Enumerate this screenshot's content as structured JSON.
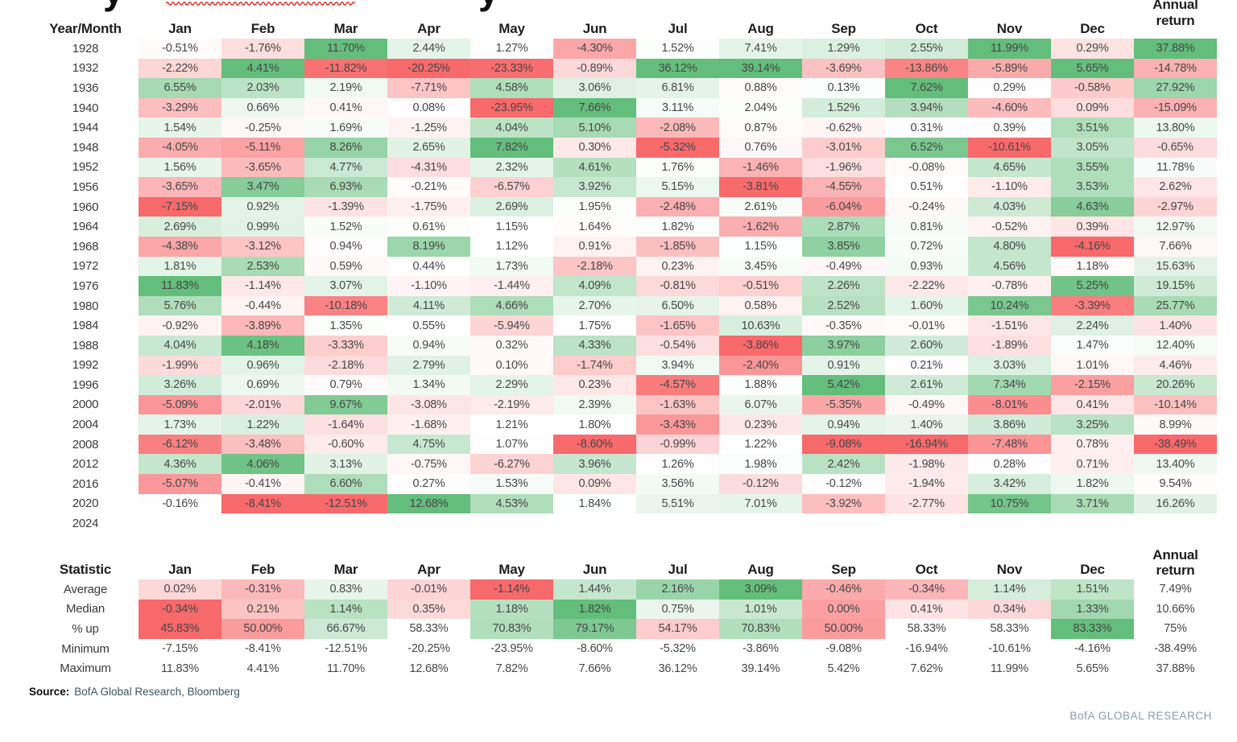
{
  "colors": {
    "scale_negative": "#F8696B",
    "scale_neutral": "#FFFFFF",
    "scale_positive": "#63BE7B",
    "squiggle": "#E03A30",
    "source_text": "#3C5560",
    "brand_text": "#8A9BB0"
  },
  "header": {
    "row_label": "Year/Month",
    "stats_row_label": "Statistic",
    "annual_line1": "Annual",
    "annual_line2": "return"
  },
  "chart_data": {
    "type": "heatmap",
    "columns": [
      "Jan",
      "Feb",
      "Mar",
      "Apr",
      "May",
      "Jun",
      "Jul",
      "Aug",
      "Sep",
      "Oct",
      "Nov",
      "Dec"
    ],
    "annual_column": "Annual return",
    "color_scale": {
      "min_color": "#F8696B",
      "mid_color": "#FFFFFF",
      "max_color": "#63BE7B",
      "midpoint": "50th percentile (per column for year rows, per row for statistic rows)"
    },
    "rows": [
      {
        "year": "1928",
        "monthly": [
          "-0.51%",
          "-1.76%",
          "11.70%",
          "2.44%",
          "1.27%",
          "-4.30%",
          "1.52%",
          "7.41%",
          "1.29%",
          "2.55%",
          "11.99%",
          "0.29%"
        ],
        "annual": "37.88%"
      },
      {
        "year": "1932",
        "monthly": [
          "-2.22%",
          "4.41%",
          "-11.82%",
          "-20.25%",
          "-23.33%",
          "-0.89%",
          "36.12%",
          "39.14%",
          "-3.69%",
          "-13.86%",
          "-5.89%",
          "5.65%"
        ],
        "annual": "-14.78%"
      },
      {
        "year": "1936",
        "monthly": [
          "6.55%",
          "2.03%",
          "2.19%",
          "-7.71%",
          "4.58%",
          "3.06%",
          "6.81%",
          "0.88%",
          "0.13%",
          "7.62%",
          "0.29%",
          "-0.58%"
        ],
        "annual": "27.92%"
      },
      {
        "year": "1940",
        "monthly": [
          "-3.29%",
          "0.66%",
          "0.41%",
          "0.08%",
          "-23.95%",
          "7.66%",
          "3.11%",
          "2.04%",
          "1.52%",
          "3.94%",
          "-4.60%",
          "0.09%"
        ],
        "annual": "-15.09%"
      },
      {
        "year": "1944",
        "monthly": [
          "1.54%",
          "-0.25%",
          "1.69%",
          "-1.25%",
          "4.04%",
          "5.10%",
          "-2.08%",
          "0.87%",
          "-0.62%",
          "0.31%",
          "0.39%",
          "3.51%"
        ],
        "annual": "13.80%"
      },
      {
        "year": "1948",
        "monthly": [
          "-4.05%",
          "-5.11%",
          "8.26%",
          "2.65%",
          "7.82%",
          "0.30%",
          "-5.32%",
          "0.76%",
          "-3.01%",
          "6.52%",
          "-10.61%",
          "3.05%"
        ],
        "annual": "-0.65%"
      },
      {
        "year": "1952",
        "monthly": [
          "1.56%",
          "-3.65%",
          "4.77%",
          "-4.31%",
          "2.32%",
          "4.61%",
          "1.76%",
          "-1.46%",
          "-1.96%",
          "-0.08%",
          "4.65%",
          "3.55%"
        ],
        "annual": "11.78%"
      },
      {
        "year": "1956",
        "monthly": [
          "-3.65%",
          "3.47%",
          "6.93%",
          "-0.21%",
          "-6.57%",
          "3.92%",
          "5.15%",
          "-3.81%",
          "-4.55%",
          "0.51%",
          "-1.10%",
          "3.53%"
        ],
        "annual": "2.62%"
      },
      {
        "year": "1960",
        "monthly": [
          "-7.15%",
          "0.92%",
          "-1.39%",
          "-1.75%",
          "2.69%",
          "1.95%",
          "-2.48%",
          "2.61%",
          "-6.04%",
          "-0.24%",
          "4.03%",
          "4.63%"
        ],
        "annual": "-2.97%"
      },
      {
        "year": "1964",
        "monthly": [
          "2.69%",
          "0.99%",
          "1.52%",
          "0.61%",
          "1.15%",
          "1.64%",
          "1.82%",
          "-1.62%",
          "2.87%",
          "0.81%",
          "-0.52%",
          "0.39%"
        ],
        "annual": "12.97%"
      },
      {
        "year": "1968",
        "monthly": [
          "-4.38%",
          "-3.12%",
          "0.94%",
          "8.19%",
          "1.12%",
          "0.91%",
          "-1.85%",
          "1.15%",
          "3.85%",
          "0.72%",
          "4.80%",
          "-4.16%"
        ],
        "annual": "7.66%"
      },
      {
        "year": "1972",
        "monthly": [
          "1.81%",
          "2.53%",
          "0.59%",
          "0.44%",
          "1.73%",
          "-2.18%",
          "0.23%",
          "3.45%",
          "-0.49%",
          "0.93%",
          "4.56%",
          "1.18%"
        ],
        "annual": "15.63%"
      },
      {
        "year": "1976",
        "monthly": [
          "11.83%",
          "-1.14%",
          "3.07%",
          "-1.10%",
          "-1.44%",
          "4.09%",
          "-0.81%",
          "-0.51%",
          "2.26%",
          "-2.22%",
          "-0.78%",
          "5.25%"
        ],
        "annual": "19.15%"
      },
      {
        "year": "1980",
        "monthly": [
          "5.76%",
          "-0.44%",
          "-10.18%",
          "4.11%",
          "4.66%",
          "2.70%",
          "6.50%",
          "0.58%",
          "2.52%",
          "1.60%",
          "10.24%",
          "-3.39%"
        ],
        "annual": "25.77%"
      },
      {
        "year": "1984",
        "monthly": [
          "-0.92%",
          "-3.89%",
          "1.35%",
          "0.55%",
          "-5.94%",
          "1.75%",
          "-1.65%",
          "10.63%",
          "-0.35%",
          "-0.01%",
          "-1.51%",
          "2.24%"
        ],
        "annual": "1.40%"
      },
      {
        "year": "1988",
        "monthly": [
          "4.04%",
          "4.18%",
          "-3.33%",
          "0.94%",
          "0.32%",
          "4.33%",
          "-0.54%",
          "-3.86%",
          "3.97%",
          "2.60%",
          "-1.89%",
          "1.47%"
        ],
        "annual": "12.40%"
      },
      {
        "year": "1992",
        "monthly": [
          "-1.99%",
          "0.96%",
          "-2.18%",
          "2.79%",
          "0.10%",
          "-1.74%",
          "3.94%",
          "-2.40%",
          "0.91%",
          "0.21%",
          "3.03%",
          "1.01%"
        ],
        "annual": "4.46%"
      },
      {
        "year": "1996",
        "monthly": [
          "3.26%",
          "0.69%",
          "0.79%",
          "1.34%",
          "2.29%",
          "0.23%",
          "-4.57%",
          "1.88%",
          "5.42%",
          "2.61%",
          "7.34%",
          "-2.15%"
        ],
        "annual": "20.26%"
      },
      {
        "year": "2000",
        "monthly": [
          "-5.09%",
          "-2.01%",
          "9.67%",
          "-3.08%",
          "-2.19%",
          "2.39%",
          "-1.63%",
          "6.07%",
          "-5.35%",
          "-0.49%",
          "-8.01%",
          "0.41%"
        ],
        "annual": "-10.14%"
      },
      {
        "year": "2004",
        "monthly": [
          "1.73%",
          "1.22%",
          "-1.64%",
          "-1.68%",
          "1.21%",
          "1.80%",
          "-3.43%",
          "0.23%",
          "0.94%",
          "1.40%",
          "3.86%",
          "3.25%"
        ],
        "annual": "8.99%"
      },
      {
        "year": "2008",
        "monthly": [
          "-6.12%",
          "-3.48%",
          "-0.60%",
          "4.75%",
          "1.07%",
          "-8.60%",
          "-0.99%",
          "1.22%",
          "-9.08%",
          "-16.94%",
          "-7.48%",
          "0.78%"
        ],
        "annual": "-38.49%"
      },
      {
        "year": "2012",
        "monthly": [
          "4.36%",
          "4.06%",
          "3.13%",
          "-0.75%",
          "-6.27%",
          "3.96%",
          "1.26%",
          "1.98%",
          "2.42%",
          "-1.98%",
          "0.28%",
          "0.71%"
        ],
        "annual": "13.40%"
      },
      {
        "year": "2016",
        "monthly": [
          "-5.07%",
          "-0.41%",
          "6.60%",
          "0.27%",
          "1.53%",
          "0.09%",
          "3.56%",
          "-0.12%",
          "-0.12%",
          "-1.94%",
          "3.42%",
          "1.82%"
        ],
        "annual": "9.54%"
      },
      {
        "year": "2020",
        "monthly": [
          "-0.16%",
          "-8.41%",
          "-12.51%",
          "12.68%",
          "4.53%",
          "1.84%",
          "5.51%",
          "7.01%",
          "-3.92%",
          "-2.77%",
          "10.75%",
          "3.71%"
        ],
        "annual": "16.26%"
      },
      {
        "year": "2024",
        "monthly": [
          "",
          "",
          "",
          "",
          "",
          "",
          "",
          "",
          "",
          "",
          "",
          ""
        ],
        "annual": ""
      }
    ],
    "stats_rows": [
      {
        "label": "Average",
        "monthly": [
          "0.02%",
          "-0.31%",
          "0.83%",
          "-0.01%",
          "-1.14%",
          "1.44%",
          "2.16%",
          "3.09%",
          "-0.46%",
          "-0.34%",
          "1.14%",
          "1.51%"
        ],
        "annual": "7.49%",
        "heatmap": true
      },
      {
        "label": "Median",
        "monthly": [
          "-0.34%",
          "0.21%",
          "1.14%",
          "0.35%",
          "1.18%",
          "1.82%",
          "0.75%",
          "1.01%",
          "0.00%",
          "0.41%",
          "0.34%",
          "1.33%"
        ],
        "annual": "10.66%",
        "heatmap": true
      },
      {
        "label": "% up",
        "monthly": [
          "45.83%",
          "50.00%",
          "66.67%",
          "58.33%",
          "70.83%",
          "79.17%",
          "54.17%",
          "70.83%",
          "50.00%",
          "58.33%",
          "58.33%",
          "83.33%"
        ],
        "annual": "75%",
        "heatmap": true
      },
      {
        "label": "Minimum",
        "monthly": [
          "-7.15%",
          "-8.41%",
          "-12.51%",
          "-20.25%",
          "-23.95%",
          "-8.60%",
          "-5.32%",
          "-3.86%",
          "-9.08%",
          "-16.94%",
          "-10.61%",
          "-4.16%"
        ],
        "annual": "-38.49%",
        "heatmap": false
      },
      {
        "label": "Maximum",
        "monthly": [
          "11.83%",
          "4.41%",
          "11.70%",
          "12.68%",
          "7.82%",
          "7.66%",
          "36.12%",
          "39.14%",
          "5.42%",
          "7.62%",
          "11.99%",
          "5.65%"
        ],
        "annual": "37.88%",
        "heatmap": false
      }
    ]
  },
  "footer": {
    "source_label": "Source:",
    "source_text": "BofA Global Research, Bloomberg",
    "brand": "BofA GLOBAL RESEARCH"
  }
}
